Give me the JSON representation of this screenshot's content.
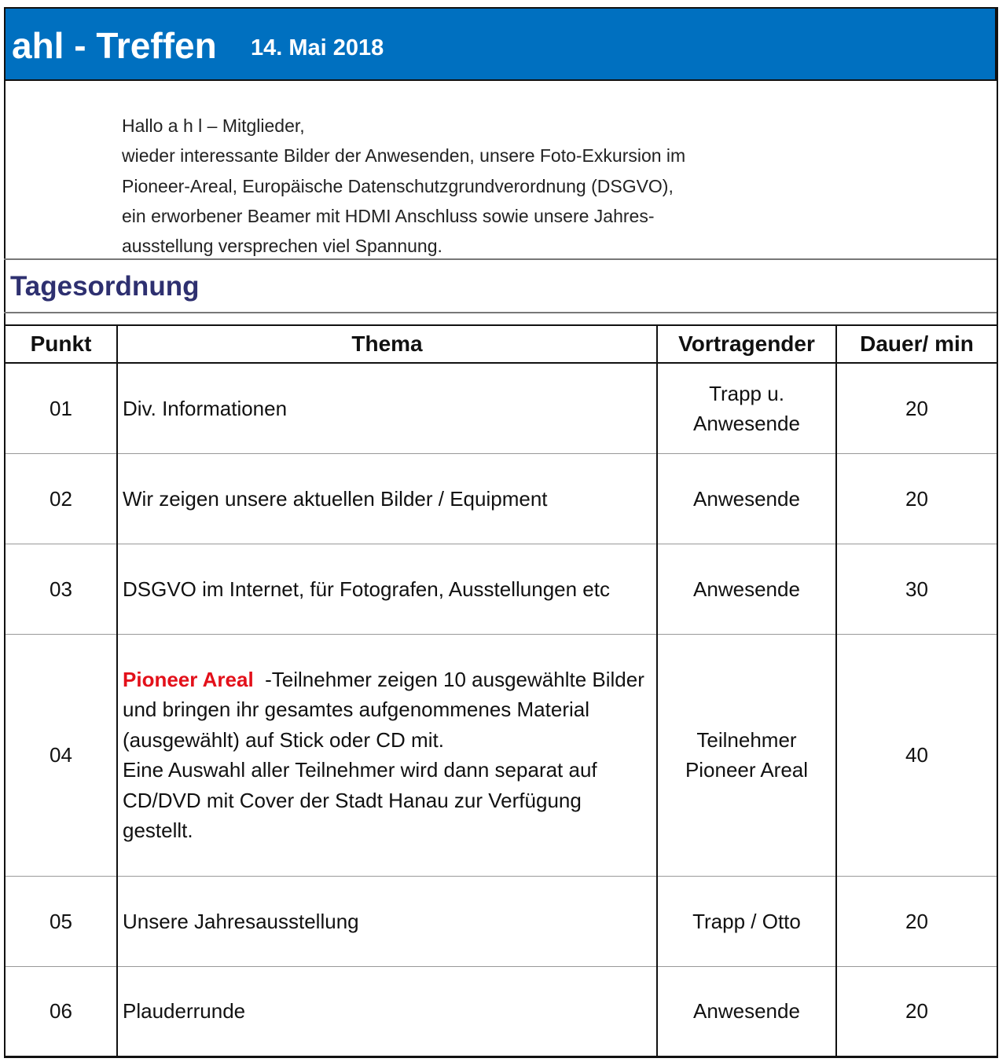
{
  "header": {
    "title": "ahl - Treffen",
    "date": "14. Mai 2018"
  },
  "intro": {
    "lines": [
      "Hallo a h l – Mitglieder,",
      "wieder interessante Bilder der Anwesenden, unsere Foto-Exkursion im",
      "Pioneer-Areal, Europäische Datenschutzgrundverordnung (DSGVO),",
      "ein erworbener Beamer mit HDMI Anschluss sowie unsere Jahres-",
      "ausstellung versprechen viel Spannung."
    ]
  },
  "section_title": "Tagesordnung",
  "table": {
    "columns": [
      "Punkt",
      "Thema",
      "Vortragender",
      "Dauer/ min"
    ],
    "rows": [
      {
        "punkt": "01",
        "thema": "Div. Informationen",
        "vortragender": [
          "Trapp u.",
          "Anwesende"
        ],
        "dauer": 20
      },
      {
        "punkt": "02",
        "thema": "Wir zeigen unsere aktuellen Bilder / Equipment",
        "vortragender": [
          "Anwesende"
        ],
        "dauer": 20
      },
      {
        "punkt": "03",
        "thema": "DSGVO im Internet, für Fotografen, Ausstellungen etc",
        "vortragender": [
          "Anwesende"
        ],
        "dauer": 30
      },
      {
        "punkt": "04",
        "thema_highlight": "Pioneer Areal",
        "thema": "-Teilnehmer zeigen 10 ausgewählte Bilder und bringen ihr gesamtes aufgenommenes Material (ausgewählt) auf Stick oder CD mit.",
        "thema_extra": "Eine Auswahl aller Teilnehmer wird dann separat auf CD/DVD mit Cover der Stadt Hanau zur Verfügung gestellt.",
        "vortragender": [
          "Teilnehmer",
          "Pioneer Areal"
        ],
        "dauer": 40
      },
      {
        "punkt": "05",
        "thema": "Unsere Jahresausstellung",
        "vortragender": [
          "Trapp / Otto"
        ],
        "dauer": 20
      },
      {
        "punkt": "06",
        "thema": "Plauderrunde",
        "vortragender": [
          "Anwesende"
        ],
        "dauer": 20
      }
    ]
  }
}
